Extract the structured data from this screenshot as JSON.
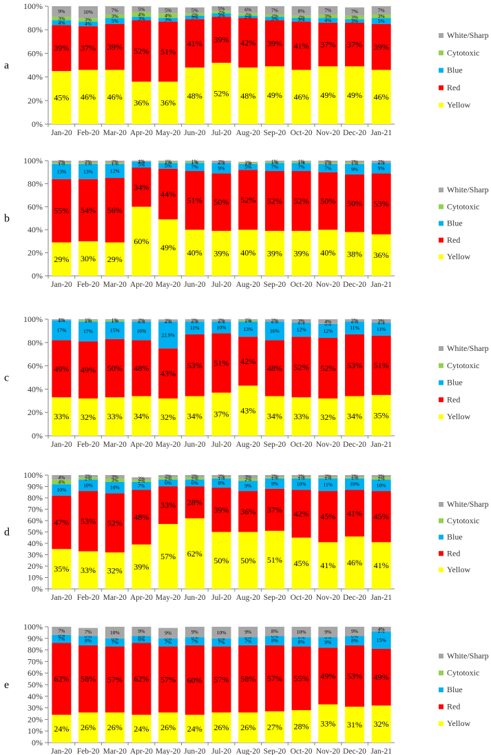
{
  "colors": {
    "Yellow": "#ffff00",
    "Red": "#ff0000",
    "Blue": "#00b0f0",
    "Cytotoxic": "#92d050",
    "White/Sharp": "#a6a6a6"
  },
  "legend_order": [
    "White/Sharp",
    "Cytotoxic",
    "Blue",
    "Red",
    "Yellow"
  ],
  "chart_data": [
    {
      "type": "bar",
      "stacked": true,
      "panel_label": "a",
      "categories": [
        "Jan-20",
        "Feb-20",
        "Mar-20",
        "Apr-20",
        "May-20",
        "Jun-20",
        "Jul-20",
        "Aug-20",
        "Sep-20",
        "Oct-20",
        "Nov-20",
        "Dec-20",
        "Jan-21"
      ],
      "ylim": [
        0,
        100
      ],
      "yticks": [
        "0%",
        "20%",
        "40%",
        "60%",
        "80%",
        "100%"
      ],
      "series": [
        {
          "name": "Yellow",
          "values": [
            45,
            46,
            46,
            36,
            36,
            48,
            52,
            48,
            49,
            46,
            49,
            49,
            46
          ],
          "labels": [
            "45%",
            "46%",
            "46%",
            "36%",
            "36%",
            "48%",
            "52%",
            "48%",
            "49%",
            "46%",
            "49%",
            "49%",
            "46%"
          ]
        },
        {
          "name": "Red",
          "values": [
            39,
            37,
            39,
            52,
            51,
            41,
            39,
            42,
            39,
            41,
            37,
            37,
            39
          ],
          "labels": [
            "39%",
            "37%",
            "39%",
            "52%",
            "51%",
            "41%",
            "39%",
            "42%",
            "39%",
            "41%",
            "37%",
            "37%",
            "39%"
          ]
        },
        {
          "name": "Blue",
          "values": [
            4,
            4,
            5,
            3,
            3,
            3,
            3,
            2,
            3,
            3,
            4,
            3,
            5
          ],
          "labels": [
            "4%",
            "4%",
            "5%",
            "3%",
            "3%",
            "3%",
            "3%",
            "2%",
            "3%",
            "3%",
            "4%",
            "3%",
            "5%"
          ]
        },
        {
          "name": "Cytotoxic",
          "values": [
            3,
            3,
            3,
            4,
            4,
            2,
            2,
            2,
            2,
            2,
            3,
            3,
            3
          ],
          "labels": [
            "3%",
            "3%",
            "3%",
            "4%",
            "4%",
            "2%",
            "2%",
            "2%",
            "2%",
            "2%",
            "3%",
            "3%",
            "3%"
          ]
        },
        {
          "name": "White/Sharp",
          "values": [
            9,
            10,
            7,
            5,
            5,
            5,
            5,
            6,
            7,
            8,
            7,
            7,
            7
          ],
          "labels": [
            "9%",
            "10%",
            "7%",
            "5%",
            "5%",
            "5%",
            "5%",
            "6%",
            "7%",
            "8%",
            "7%",
            "7%",
            "7%"
          ]
        }
      ]
    },
    {
      "type": "bar",
      "stacked": true,
      "panel_label": "b",
      "categories": [
        "Jan-20",
        "Feb-20",
        "Mar-20",
        "Apr-20",
        "May-20",
        "Jun-20",
        "Jul-20",
        "Aug-20",
        "Sep-20",
        "Oct-20",
        "Nov-20",
        "Dec-20",
        "Jan-21"
      ],
      "ylim": [
        0,
        100
      ],
      "yticks": [
        "0%",
        "20%",
        "40%",
        "60%",
        "80%",
        "100%"
      ],
      "series": [
        {
          "name": "Yellow",
          "values": [
            29,
            30,
            29,
            60,
            49,
            40,
            39,
            40,
            39,
            39,
            40,
            38,
            36
          ],
          "labels": [
            "29%",
            "30%",
            "29%",
            "60%",
            "49%",
            "40%",
            "39%",
            "40%",
            "39%",
            "39%",
            "40%",
            "38%",
            "36%"
          ]
        },
        {
          "name": "Red",
          "values": [
            55,
            54,
            56,
            34,
            44,
            51,
            50,
            52,
            52,
            52,
            50,
            50,
            53
          ],
          "labels": [
            "55%",
            "54%",
            "56%",
            "34%",
            "44%",
            "51%",
            "50%",
            "52%",
            "52%",
            "52%",
            "50%",
            "50%",
            "53%"
          ]
        },
        {
          "name": "Blue",
          "values": [
            13,
            13,
            12,
            5,
            5,
            7,
            9,
            5,
            7,
            7,
            7,
            9,
            9
          ],
          "labels": [
            "13%",
            "13%",
            "12%",
            "5%",
            "5%",
            "7%",
            "9%",
            "5%",
            "7%",
            "7%",
            "7%",
            "9%",
            "9%"
          ]
        },
        {
          "name": "Cytotoxic",
          "values": [
            1,
            1,
            1,
            0,
            1,
            1,
            0,
            1,
            1,
            1,
            1,
            1,
            0
          ],
          "labels": [
            "1%",
            "1%",
            "1%",
            "0%",
            "1%",
            "1%",
            "0%",
            "1%",
            "1%",
            "1%",
            "1%",
            "1%",
            "0%"
          ]
        },
        {
          "name": "White/Sharp",
          "values": [
            2,
            2,
            2,
            1,
            1,
            1,
            2,
            1,
            1,
            1,
            2,
            2,
            2
          ],
          "labels": [
            "2%",
            "2%",
            "2%",
            "1%",
            "1%",
            "1%",
            "2%",
            "1%",
            "1%",
            "1%",
            "2%",
            "2%",
            "2%"
          ]
        }
      ]
    },
    {
      "type": "bar",
      "stacked": true,
      "panel_label": "c",
      "categories": [
        "Jan-20",
        "Feb-20",
        "Mar-20",
        "Apr-20",
        "May-20",
        "Jun-20",
        "Jul-20",
        "Aug-20",
        "Sep-20",
        "Oct-20",
        "Nov-20",
        "Dec-20",
        "Jan-21"
      ],
      "ylim": [
        0,
        100
      ],
      "yticks": [
        "0%",
        "20%",
        "40%",
        "60%",
        "80%",
        "100%"
      ],
      "series": [
        {
          "name": "Yellow",
          "values": [
            33,
            32,
            33,
            34,
            32,
            34,
            37,
            43,
            34,
            33,
            32,
            34,
            35
          ],
          "labels": [
            "33%",
            "32%",
            "33%",
            "34%",
            "32%",
            "34%",
            "37%",
            "43%",
            "34%",
            "33%",
            "32%",
            "34%",
            "35%"
          ]
        },
        {
          "name": "Red",
          "values": [
            49,
            49,
            50,
            48,
            43,
            53,
            51,
            42,
            48,
            52,
            52,
            53,
            51
          ],
          "labels": [
            "49%",
            "49%",
            "50%",
            "48%",
            "43%",
            "53%",
            "51%",
            "42%",
            "48%",
            "52%",
            "52%",
            "53%",
            "51%"
          ]
        },
        {
          "name": "Blue",
          "values": [
            17,
            17,
            15,
            16,
            22.9,
            11,
            10,
            13,
            16,
            12,
            12,
            11,
            11
          ],
          "labels": [
            "17%",
            "17%",
            "15%",
            "16%",
            "22.9%",
            "11%",
            "10%",
            "13%",
            "16%",
            "12%",
            "12%",
            "11%",
            "11%"
          ]
        },
        {
          "name": "Cytotoxic",
          "values": [
            0,
            1,
            1,
            0,
            0,
            0,
            0,
            1,
            0,
            0,
            0,
            0,
            0
          ],
          "labels": [
            "0%",
            "1%",
            "1%",
            "0%",
            "0%",
            "0%",
            "0%",
            "1%",
            "0%",
            "0%",
            "0%",
            "0%",
            "0%"
          ]
        },
        {
          "name": "White/Sharp",
          "values": [
            1,
            1,
            1,
            2,
            2,
            2,
            2,
            1,
            2,
            3,
            4,
            2,
            3
          ],
          "labels": [
            "1%",
            "1%",
            "1%",
            "2%",
            "2%",
            "2%",
            "2%",
            "1%",
            "2%",
            "3%",
            "4%",
            "2%",
            "3%"
          ]
        }
      ]
    },
    {
      "type": "bar",
      "stacked": true,
      "panel_label": "d",
      "categories": [
        "Jan-20",
        "Feb-20",
        "Mar-20",
        "Apr-20",
        "May-20",
        "Jun-20",
        "Jul-20",
        "Aug-20",
        "Sep-20",
        "Oct-20",
        "Nov-20",
        "Dec-20",
        "Jan-21"
      ],
      "ylim": [
        0,
        100
      ],
      "yticks": [
        "0%",
        "10%",
        "20%",
        "30%",
        "40%",
        "50%",
        "60%",
        "70%",
        "80%",
        "90%",
        "100%"
      ],
      "series": [
        {
          "name": "Yellow",
          "values": [
            35,
            33,
            32,
            39,
            57,
            62,
            50,
            50,
            51,
            45,
            41,
            46,
            41
          ],
          "labels": [
            "35%",
            "33%",
            "32%",
            "39%",
            "57%",
            "62%",
            "50%",
            "50%",
            "51%",
            "45%",
            "41%",
            "46%",
            "41%"
          ]
        },
        {
          "name": "Red",
          "values": [
            47,
            53,
            52,
            48,
            33,
            28,
            39,
            36,
            37,
            42,
            45,
            41,
            45
          ],
          "labels": [
            "47%",
            "53%",
            "52%",
            "48%",
            "33%",
            "28%",
            "39%",
            "36%",
            "37%",
            "42%",
            "45%",
            "41%",
            "45%"
          ]
        },
        {
          "name": "Blue",
          "values": [
            10,
            10,
            10,
            7,
            6,
            6,
            8,
            9,
            9,
            10,
            11,
            10,
            10
          ],
          "labels": [
            "10%",
            "10%",
            "10%",
            "7%",
            "6%",
            "6%",
            "8%",
            "9%",
            "9%",
            "10%",
            "11%",
            "10%",
            "10%"
          ]
        },
        {
          "name": "Cytotoxic",
          "values": [
            4,
            2,
            3,
            2,
            2,
            2,
            1,
            2,
            1,
            1,
            1,
            1,
            2
          ],
          "labels": [
            "4%",
            "2%",
            "3%",
            "2%",
            "2%",
            "2%",
            "1%",
            "2%",
            "1%",
            "1%",
            "1%",
            "1%",
            "2%"
          ]
        },
        {
          "name": "White/Sharp",
          "values": [
            4,
            2,
            3,
            2,
            2,
            2,
            2,
            3,
            2,
            2,
            2,
            2,
            2
          ],
          "labels": [
            "4%",
            "2%",
            "3%",
            "2%",
            "2%",
            "2%",
            "2%",
            "3%",
            "2%",
            "2%",
            "2%",
            "2%",
            "2%"
          ]
        }
      ]
    },
    {
      "type": "bar",
      "stacked": true,
      "panel_label": "e",
      "categories": [
        "Jan-20",
        "Feb-20",
        "Mar-20",
        "Apr-20",
        "May-20",
        "Jun-20",
        "Jul-20",
        "Aug-20",
        "Sep-20",
        "Oct-20",
        "Nov-20",
        "Dec-20",
        "Jan-21"
      ],
      "ylim": [
        0,
        100
      ],
      "yticks": [
        "0%",
        "10%",
        "20%",
        "30%",
        "40%",
        "50%",
        "60%",
        "70%",
        "80%",
        "90%",
        "100%"
      ],
      "series": [
        {
          "name": "Yellow",
          "values": [
            24,
            26,
            26,
            24,
            26,
            24,
            26,
            26,
            27,
            28,
            33,
            31,
            32
          ],
          "labels": [
            "24%",
            "26%",
            "26%",
            "24%",
            "26%",
            "24%",
            "26%",
            "26%",
            "27%",
            "28%",
            "33%",
            "31%",
            "32%"
          ]
        },
        {
          "name": "Red",
          "values": [
            62,
            58,
            57,
            62,
            57,
            60,
            57,
            58,
            57,
            55,
            49,
            53,
            49
          ],
          "labels": [
            "62%",
            "58%",
            "57%",
            "62%",
            "57%",
            "60%",
            "57%",
            "58%",
            "57%",
            "55%",
            "49%",
            "53%",
            "49%"
          ]
        },
        {
          "name": "Blue",
          "values": [
            7,
            8,
            7,
            6,
            7,
            7,
            7,
            7,
            8,
            8,
            9,
            8,
            15
          ],
          "labels": [
            "7%",
            "8%",
            "7%",
            "6%",
            "7%",
            "7%",
            "7%",
            "7%",
            "8%",
            "8%",
            "9%",
            "8%",
            "15%"
          ]
        },
        {
          "name": "Cytotoxic",
          "values": [
            0,
            0,
            0,
            0,
            0,
            0,
            0,
            0,
            0,
            0,
            0,
            0,
            0
          ],
          "labels": [
            "0%",
            "0%",
            "0%",
            "0%",
            "0%",
            "0%",
            "0%",
            "0%",
            "0%",
            "0%",
            "0%",
            "0%",
            "0%"
          ]
        },
        {
          "name": "White/Sharp",
          "values": [
            7,
            7,
            10,
            9,
            9,
            9,
            10,
            9,
            8,
            10,
            9,
            9,
            4
          ],
          "labels": [
            "7%",
            "7%",
            "10%",
            "9%",
            "9%",
            "9%",
            "10%",
            "9%",
            "8%",
            "10%",
            "9%",
            "9%",
            "4%"
          ]
        }
      ]
    }
  ]
}
